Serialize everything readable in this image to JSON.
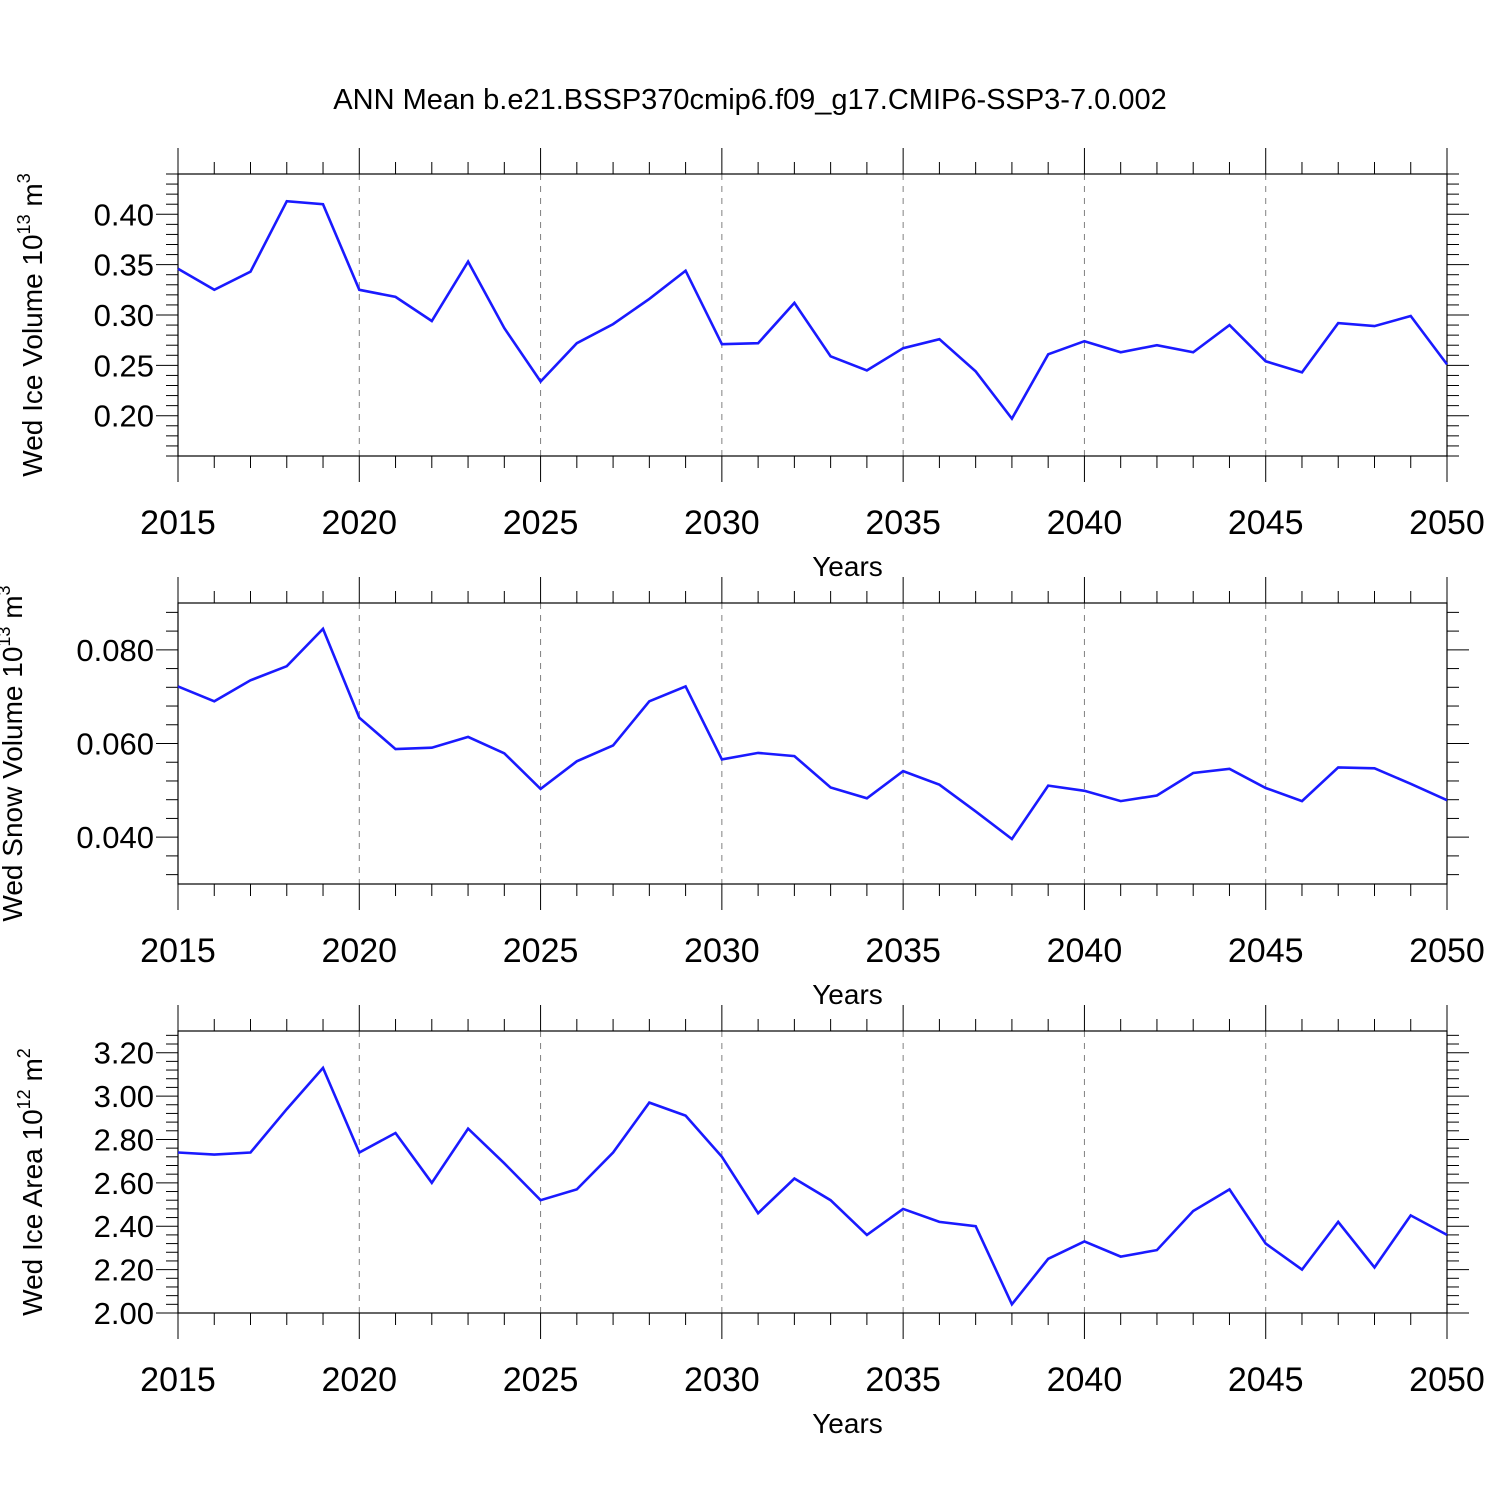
{
  "title": "ANN Mean b.e21.BSSP370cmip6.f09_g17.CMIP6-SSP3-7.0.002",
  "colors": {
    "line": "#1a1aff",
    "axis": "#000000",
    "grid": "#808080"
  },
  "chart_data": [
    {
      "type": "line",
      "xlabel": "Years",
      "ylabel": {
        "base": "Wed Ice Volume 10",
        "exp": "13",
        "unit": " m",
        "unit_exp": "3"
      },
      "xlim": [
        2015,
        2050
      ],
      "ylim": [
        0.16,
        0.44
      ],
      "x_ticks": [
        "2015",
        "2020",
        "2025",
        "2030",
        "2035",
        "2040",
        "2045",
        "2050"
      ],
      "y_ticks": [
        "0.20",
        "0.25",
        "0.30",
        "0.35",
        "0.40"
      ],
      "grid": "vertical dashed at major x ticks",
      "x": [
        2015,
        2016,
        2017,
        2018,
        2019,
        2020,
        2021,
        2022,
        2023,
        2024,
        2025,
        2026,
        2027,
        2028,
        2029,
        2030,
        2031,
        2032,
        2033,
        2034,
        2035,
        2036,
        2037,
        2038,
        2039,
        2040,
        2041,
        2042,
        2043,
        2044,
        2045,
        2046,
        2047,
        2048,
        2049,
        2050
      ],
      "values": [
        0.346,
        0.325,
        0.343,
        0.413,
        0.41,
        0.325,
        0.318,
        0.294,
        0.353,
        0.287,
        0.234,
        0.272,
        0.291,
        0.316,
        0.344,
        0.271,
        0.272,
        0.312,
        0.259,
        0.245,
        0.267,
        0.276,
        0.244,
        0.197,
        0.261,
        0.274,
        0.263,
        0.27,
        0.263,
        0.29,
        0.254,
        0.243,
        0.292,
        0.289,
        0.299,
        0.251
      ]
    },
    {
      "type": "line",
      "xlabel": "Years",
      "ylabel": {
        "base": "Wed Snow Volume 10",
        "exp": "13",
        "unit": " m",
        "unit_exp": "3"
      },
      "xlim": [
        2015,
        2050
      ],
      "ylim": [
        0.03,
        0.09
      ],
      "x_ticks": [
        "2015",
        "2020",
        "2025",
        "2030",
        "2035",
        "2040",
        "2045",
        "2050"
      ],
      "y_ticks": [
        "0.040",
        "0.060",
        "0.080"
      ],
      "grid": "vertical dashed at major x ticks",
      "x": [
        2015,
        2016,
        2017,
        2018,
        2019,
        2020,
        2021,
        2022,
        2023,
        2024,
        2025,
        2026,
        2027,
        2028,
        2029,
        2030,
        2031,
        2032,
        2033,
        2034,
        2035,
        2036,
        2037,
        2038,
        2039,
        2040,
        2041,
        2042,
        2043,
        2044,
        2045,
        2046,
        2047,
        2048,
        2049,
        2050
      ],
      "values": [
        0.0722,
        0.069,
        0.0735,
        0.0765,
        0.0845,
        0.0655,
        0.0588,
        0.0591,
        0.0614,
        0.0579,
        0.0503,
        0.0562,
        0.0596,
        0.069,
        0.0722,
        0.0566,
        0.058,
        0.0573,
        0.0506,
        0.0483,
        0.0541,
        0.0512,
        0.0455,
        0.0396,
        0.051,
        0.0499,
        0.0477,
        0.0489,
        0.0537,
        0.0546,
        0.0505,
        0.0477,
        0.0549,
        0.0547,
        0.0514,
        0.0479
      ]
    },
    {
      "type": "line",
      "xlabel": "Years",
      "ylabel": {
        "base": "Wed Ice Area 10",
        "exp": "12",
        "unit": " m",
        "unit_exp": "2"
      },
      "xlim": [
        2015,
        2050
      ],
      "ylim": [
        2.0,
        3.3
      ],
      "x_ticks": [
        "2015",
        "2020",
        "2025",
        "2030",
        "2035",
        "2040",
        "2045",
        "2050"
      ],
      "y_ticks": [
        "2.00",
        "2.20",
        "2.40",
        "2.60",
        "2.80",
        "3.00",
        "3.20"
      ],
      "grid": "vertical dashed at major x ticks",
      "x": [
        2015,
        2016,
        2017,
        2018,
        2019,
        2020,
        2021,
        2022,
        2023,
        2024,
        2025,
        2026,
        2027,
        2028,
        2029,
        2030,
        2031,
        2032,
        2033,
        2034,
        2035,
        2036,
        2037,
        2038,
        2039,
        2040,
        2041,
        2042,
        2043,
        2044,
        2045,
        2046,
        2047,
        2048,
        2049,
        2050
      ],
      "values": [
        2.74,
        2.73,
        2.74,
        2.94,
        3.13,
        2.74,
        2.83,
        2.6,
        2.85,
        2.69,
        2.52,
        2.57,
        2.74,
        2.97,
        2.91,
        2.72,
        2.46,
        2.62,
        2.52,
        2.36,
        2.48,
        2.42,
        2.4,
        2.04,
        2.25,
        2.33,
        2.26,
        2.29,
        2.47,
        2.57,
        2.32,
        2.2,
        2.42,
        2.21,
        2.45,
        2.36
      ]
    }
  ]
}
